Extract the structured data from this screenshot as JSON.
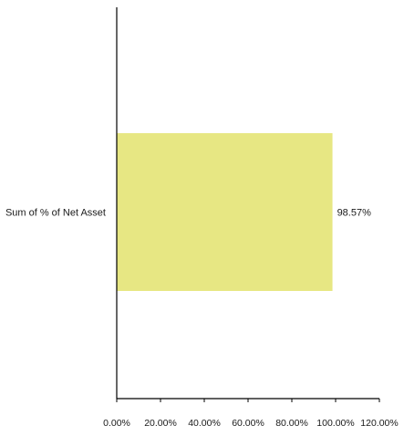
{
  "chart_data": {
    "type": "bar",
    "orientation": "horizontal",
    "title": "",
    "xlabel": "",
    "ylabel": "",
    "categories": [
      "Sum of % of Net Asset"
    ],
    "series": [
      {
        "values": [
          98.57
        ],
        "data_labels": [
          "98.57%"
        ],
        "color": "#e7e783"
      }
    ],
    "x_ticks": [
      0,
      20,
      40,
      60,
      80,
      100,
      120
    ],
    "x_tick_labels": [
      "0.00%",
      "20.00%",
      "40.00%",
      "60.00%",
      "80.00%",
      "100.00%",
      "120.00%"
    ],
    "xlim": [
      0,
      120
    ],
    "grid": false,
    "legend": "none"
  }
}
